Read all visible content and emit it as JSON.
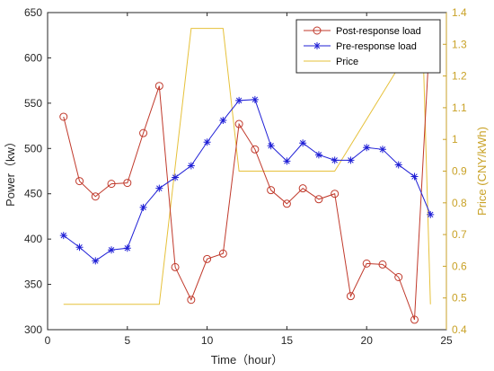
{
  "chart_data": {
    "type": "line",
    "x": [
      1,
      2,
      3,
      4,
      5,
      6,
      7,
      8,
      9,
      10,
      11,
      12,
      13,
      14,
      15,
      16,
      17,
      18,
      19,
      20,
      21,
      22,
      23,
      24
    ],
    "xlabel": "Time（hour）",
    "ylabel_left": "Power（kw）",
    "ylabel_right": "Price (CNY/kWh)",
    "xlim": [
      0,
      25
    ],
    "ylim_left": [
      300,
      650
    ],
    "ylim_right": [
      0.4,
      1.4
    ],
    "xticks": [
      0,
      5,
      10,
      15,
      20,
      25
    ],
    "yticks_left": [
      300,
      350,
      400,
      450,
      500,
      550,
      600,
      650
    ],
    "yticks_right": [
      0.4,
      0.5,
      0.6,
      0.7,
      0.8,
      0.9,
      1.0,
      1.1,
      1.2,
      1.3,
      1.4
    ],
    "ytick_labels_right": [
      "0.4",
      "0.5",
      "0.6",
      "0.7",
      "0.8",
      "0.9",
      "1",
      "1.1",
      "1.2",
      "1.3",
      "1.4"
    ],
    "grid": false,
    "legend_position": "top-right",
    "series": [
      {
        "name": "Post-response load",
        "axis": "left",
        "color": "#c0392b",
        "marker": "circle",
        "values": [
          535,
          464,
          447,
          461,
          462,
          517,
          569,
          369,
          333,
          378,
          384,
          527,
          499,
          454,
          439,
          456,
          444,
          450,
          337,
          373,
          372,
          358,
          311,
          638
        ]
      },
      {
        "name": "Pre-response load",
        "axis": "left",
        "color": "#1f1fd6",
        "marker": "star",
        "values": [
          404,
          391,
          376,
          388,
          390,
          435,
          456,
          468,
          481,
          507,
          531,
          553,
          554,
          503,
          486,
          506,
          493,
          487,
          487,
          501,
          499,
          482,
          469,
          427
        ]
      },
      {
        "name": "Price",
        "axis": "right",
        "color": "#e6c13a",
        "marker": "none",
        "points": [
          [
            1,
            0.48
          ],
          [
            7,
            0.48
          ],
          [
            9,
            1.35
          ],
          [
            11,
            1.35
          ],
          [
            12,
            0.9
          ],
          [
            18,
            0.9
          ],
          [
            23.5,
            1.35
          ],
          [
            24,
            0.48
          ]
        ]
      }
    ]
  }
}
